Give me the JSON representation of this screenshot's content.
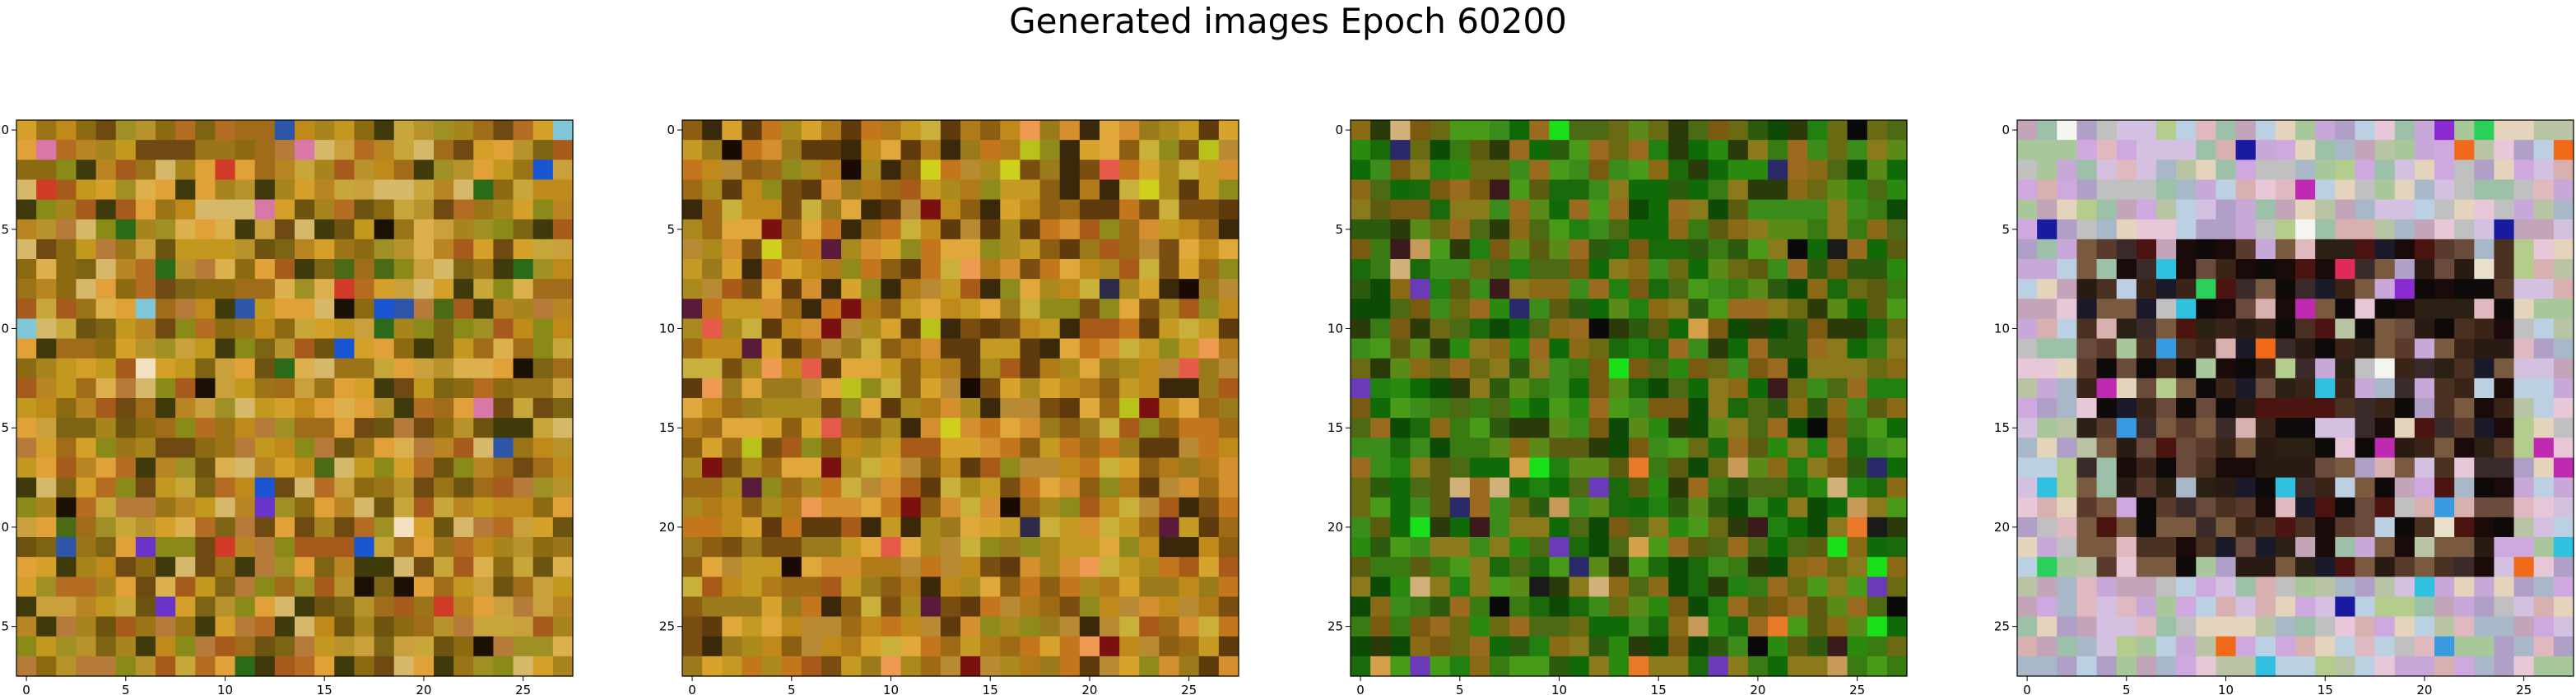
{
  "figure": {
    "title": "Generated images Epoch 60200"
  },
  "axes": {
    "x_ticks": [
      "0",
      "5",
      "10",
      "15",
      "20",
      "25"
    ],
    "y_ticks": [
      "0",
      "5",
      "10",
      "15",
      "20",
      "25"
    ]
  },
  "images": [
    {
      "grid_size": 28,
      "palette": [
        "#c08a1a",
        "#a8841c",
        "#b98422",
        "#8c6a12",
        "#c2981e",
        "#9c7418",
        "#d4a02a",
        "#7c6414",
        "#b8922a",
        "#a06c1a",
        "#caa03c",
        "#8a8a18",
        "#b46c22",
        "#6c5410",
        "#dcb04c",
        "#e2a038",
        "#a65a1c",
        "#c7a73a",
        "#9e9024",
        "#6e4a12",
        "#3e3a0c",
        "#b67a3a",
        "#d6b86a"
      ],
      "accents": [
        "#2e56a8",
        "#d877a8",
        "#7fc6d9",
        "#1a55d1",
        "#f2e0c0",
        "#6a34c9",
        "#1a1004",
        "#4b6a16",
        "#2a6a18",
        "#d23a28"
      ]
    },
    {
      "grid_size": 28,
      "palette": [
        "#c08a1a",
        "#b07a18",
        "#9e6a16",
        "#c49a22",
        "#aa8a1c",
        "#8c5e12",
        "#d8a32c",
        "#7a4e10",
        "#c3761c",
        "#b88a34",
        "#9a7a1a",
        "#5e3a0c",
        "#e0a83a",
        "#a85a18",
        "#c9b03a",
        "#8e8a1c",
        "#3a280a",
        "#d4902e"
      ],
      "accents": [
        "#e65a4a",
        "#b8c21a",
        "#7a1010",
        "#2e2a4a",
        "#5a1a3a",
        "#cfd01e",
        "#1a0a04",
        "#ef9a52"
      ]
    },
    {
      "grid_size": 28,
      "palette": [
        "#3a7a12",
        "#2a8a10",
        "#4c6a14",
        "#6a6a12",
        "#208010",
        "#5a8a18",
        "#8a6a14",
        "#1a6a0c",
        "#2c5a0e",
        "#7a5a10",
        "#4a9a1a",
        "#2a3a08",
        "#8a7a1c",
        "#106a08",
        "#5c5c10",
        "#3c8c1c",
        "#0c4a06",
        "#9a6a1e"
      ],
      "accents": [
        "#d2b07a",
        "#6a3ab8",
        "#1a1a1a",
        "#3a1a1a",
        "#d6a04a",
        "#2a2a6a",
        "#0a0a0a",
        "#c89a5a",
        "#e87a2a",
        "#1ae01a"
      ]
    },
    {
      "grid_size": 28,
      "palette": [
        "#c8a8d8",
        "#b8c4a4",
        "#e0b8c0",
        "#a8b8c8",
        "#d4c0e0",
        "#9cc0a8",
        "#c4a4b8",
        "#e4d4bc",
        "#b0a0c8",
        "#a8c89c",
        "#d8b0b0",
        "#c0c0c0",
        "#bcd0e4",
        "#d0a8e0",
        "#b4cc8c",
        "#e8c8d8"
      ],
      "inner": [
        "#2a1a14",
        "#1a0a0a",
        "#3a2418",
        "#4a3020",
        "#0e0a0a",
        "#5a3a2a",
        "#2a2014",
        "#6a4a3a",
        "#1a1a2a",
        "#3a2a2a",
        "#7a5a3e",
        "#4c1410"
      ],
      "accents": [
        "#e02a5a",
        "#f06a1a",
        "#3a9adf",
        "#2ad05a",
        "#c02ab0",
        "#f4f4f0",
        "#1a1aa0",
        "#8a2ad0",
        "#e8e0c8",
        "#30c0e0"
      ]
    }
  ]
}
